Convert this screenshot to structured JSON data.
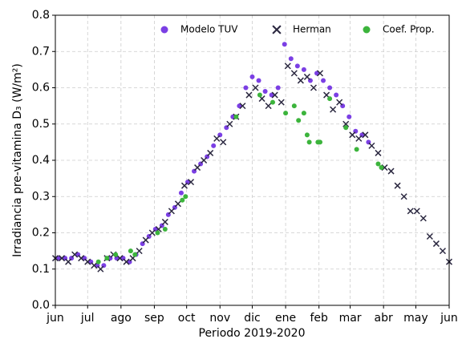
{
  "chart_data": {
    "type": "scatter",
    "xlabel": "Periodo 2019-2020",
    "ylabel": "Irradiancia pre-vitamina D₃ (W/m²)",
    "xlim": [
      0,
      366
    ],
    "xticks": [
      {
        "value": 0,
        "label": "jun"
      },
      {
        "value": 30,
        "label": "jul"
      },
      {
        "value": 61,
        "label": "ago"
      },
      {
        "value": 92,
        "label": "sep"
      },
      {
        "value": 122,
        "label": "oct"
      },
      {
        "value": 153,
        "label": "nov"
      },
      {
        "value": 183,
        "label": "dic"
      },
      {
        "value": 214,
        "label": "ene"
      },
      {
        "value": 245,
        "label": "feb"
      },
      {
        "value": 274,
        "label": "mar"
      },
      {
        "value": 305,
        "label": "abr"
      },
      {
        "value": 335,
        "label": "may"
      },
      {
        "value": 366,
        "label": "jun"
      }
    ],
    "ylim": [
      0,
      0.8
    ],
    "yticks": [
      {
        "value": 0,
        "label": "0.0"
      },
      {
        "value": 0.1,
        "label": "0.1"
      },
      {
        "value": 0.2,
        "label": "0.2"
      },
      {
        "value": 0.3,
        "label": "0.3"
      },
      {
        "value": 0.4,
        "label": "0.4"
      },
      {
        "value": 0.5,
        "label": "0.5"
      },
      {
        "value": 0.6,
        "label": "0.6"
      },
      {
        "value": 0.7,
        "label": "0.7"
      },
      {
        "value": 0.8,
        "label": "0.8"
      }
    ],
    "grid": true,
    "legend": "top",
    "series": [
      {
        "name": "Modelo TUV",
        "color": "#7b3fe4",
        "marker": "o",
        "x": [
          3,
          9,
          15,
          21,
          27,
          33,
          39,
          45,
          51,
          57,
          63,
          69,
          75,
          81,
          87,
          93,
          99,
          105,
          111,
          117,
          123,
          129,
          135,
          141,
          147,
          153,
          159,
          165,
          171,
          177,
          183,
          189,
          195,
          201,
          207,
          213,
          219,
          225,
          231,
          237,
          243,
          249,
          255,
          261,
          267,
          273,
          279,
          285,
          291
        ],
        "values": [
          0.13,
          0.13,
          0.13,
          0.14,
          0.13,
          0.12,
          0.11,
          0.11,
          0.13,
          0.13,
          0.13,
          0.12,
          0.14,
          0.17,
          0.19,
          0.21,
          0.22,
          0.25,
          0.27,
          0.31,
          0.34,
          0.37,
          0.39,
          0.41,
          0.44,
          0.47,
          0.49,
          0.52,
          0.55,
          0.6,
          0.63,
          0.62,
          0.59,
          0.58,
          0.6,
          0.72,
          0.68,
          0.66,
          0.65,
          0.62,
          0.64,
          0.62,
          0.6,
          0.58,
          0.55,
          0.52,
          0.48,
          0.47,
          0.45
        ]
      },
      {
        "name": "Herman",
        "color": "#2b2840",
        "marker": "x",
        "x": [
          0,
          6,
          12,
          18,
          24,
          30,
          36,
          42,
          48,
          54,
          60,
          66,
          72,
          78,
          84,
          90,
          96,
          102,
          108,
          114,
          120,
          126,
          132,
          138,
          144,
          150,
          156,
          162,
          168,
          174,
          180,
          186,
          192,
          198,
          204,
          210,
          216,
          222,
          228,
          234,
          240,
          246,
          252,
          258,
          264,
          270,
          276,
          282,
          288,
          294,
          300,
          306,
          312,
          318,
          324,
          330,
          336,
          342,
          348,
          354,
          360,
          366
        ],
        "values": [
          0.13,
          0.13,
          0.12,
          0.14,
          0.13,
          0.12,
          0.11,
          0.1,
          0.13,
          0.14,
          0.13,
          0.12,
          0.13,
          0.15,
          0.18,
          0.2,
          0.21,
          0.23,
          0.26,
          0.28,
          0.33,
          0.34,
          0.38,
          0.4,
          0.42,
          0.46,
          0.45,
          0.5,
          0.52,
          0.55,
          0.58,
          0.6,
          0.57,
          0.55,
          0.58,
          0.56,
          0.66,
          0.64,
          0.62,
          0.63,
          0.6,
          0.64,
          0.58,
          0.54,
          0.56,
          0.5,
          0.47,
          0.46,
          0.47,
          0.44,
          0.42,
          0.38,
          0.37,
          0.33,
          0.3,
          0.26,
          0.26,
          0.24,
          0.19,
          0.17,
          0.15,
          0.12
        ]
      },
      {
        "name": "Coef. Prop.",
        "color": "#3cb43c",
        "marker": "o",
        "x": [
          40,
          48,
          56,
          70,
          74,
          95,
          102,
          118,
          121,
          168,
          190,
          202,
          214,
          222,
          226,
          231,
          234,
          236,
          244,
          246,
          255,
          270,
          280,
          300,
          303
        ],
        "values": [
          0.12,
          0.13,
          0.14,
          0.15,
          0.14,
          0.2,
          0.21,
          0.29,
          0.3,
          0.52,
          0.58,
          0.56,
          0.53,
          0.55,
          0.51,
          0.53,
          0.47,
          0.45,
          0.45,
          0.45,
          0.57,
          0.49,
          0.43,
          0.39,
          0.38
        ]
      }
    ]
  }
}
